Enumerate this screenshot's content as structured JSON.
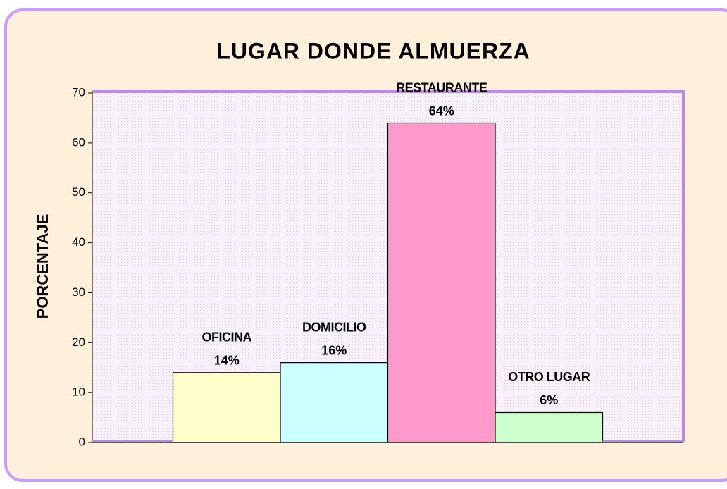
{
  "chart_data": {
    "type": "bar",
    "title": "LUGAR DONDE ALMUERZA",
    "y_label": "PORCENTAJE",
    "categories": [
      "OFICINA",
      "DOMICILIO",
      "RESTAURANTE",
      "OTRO LUGAR"
    ],
    "values": [
      14,
      16,
      64,
      6
    ],
    "value_labels": [
      "14%",
      "16%",
      "64%",
      "6%"
    ],
    "colors": [
      "#ffffcc",
      "#ccffff",
      "#ff99cc",
      "#ccffcc"
    ],
    "ylim": [
      0,
      70
    ],
    "yticks": [
      0,
      10,
      20,
      30,
      40,
      50,
      60,
      70
    ],
    "grid": false
  }
}
